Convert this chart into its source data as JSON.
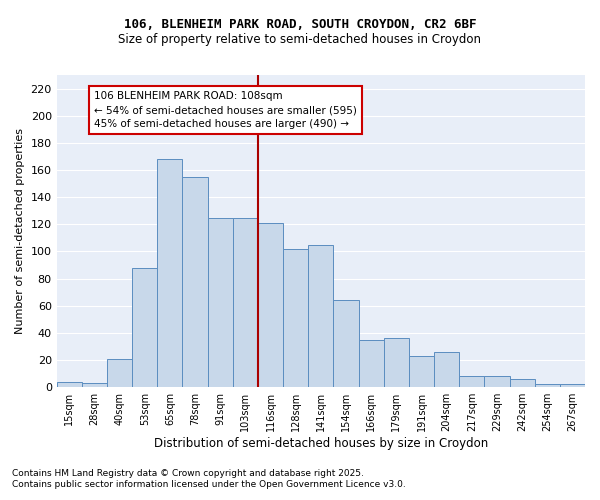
{
  "title1": "106, BLENHEIM PARK ROAD, SOUTH CROYDON, CR2 6BF",
  "title2": "Size of property relative to semi-detached houses in Croydon",
  "xlabel": "Distribution of semi-detached houses by size in Croydon",
  "ylabel": "Number of semi-detached properties",
  "bin_labels": [
    "15sqm",
    "28sqm",
    "40sqm",
    "53sqm",
    "65sqm",
    "78sqm",
    "91sqm",
    "103sqm",
    "116sqm",
    "128sqm",
    "141sqm",
    "154sqm",
    "166sqm",
    "179sqm",
    "191sqm",
    "204sqm",
    "217sqm",
    "229sqm",
    "242sqm",
    "254sqm",
    "267sqm"
  ],
  "bin_values": [
    4,
    3,
    21,
    88,
    168,
    155,
    125,
    125,
    121,
    102,
    105,
    64,
    35,
    36,
    23,
    26,
    8,
    8,
    6,
    2,
    2
  ],
  "property_bin_index": 7.5,
  "annotation_title": "106 BLENHEIM PARK ROAD: 108sqm",
  "annotation_line1": "← 54% of semi-detached houses are smaller (595)",
  "annotation_line2": "45% of semi-detached houses are larger (490) →",
  "bar_color": "#c8d8ea",
  "bar_edge_color": "#5b8dc0",
  "vline_color": "#aa0000",
  "annotation_box_edge": "#cc0000",
  "bg_color": "#e8eef8",
  "grid_color": "white",
  "footnote1": "Contains HM Land Registry data © Crown copyright and database right 2025.",
  "footnote2": "Contains public sector information licensed under the Open Government Licence v3.0.",
  "ylim": [
    0,
    230
  ],
  "yticks": [
    0,
    20,
    40,
    60,
    80,
    100,
    120,
    140,
    160,
    180,
    200,
    220
  ]
}
